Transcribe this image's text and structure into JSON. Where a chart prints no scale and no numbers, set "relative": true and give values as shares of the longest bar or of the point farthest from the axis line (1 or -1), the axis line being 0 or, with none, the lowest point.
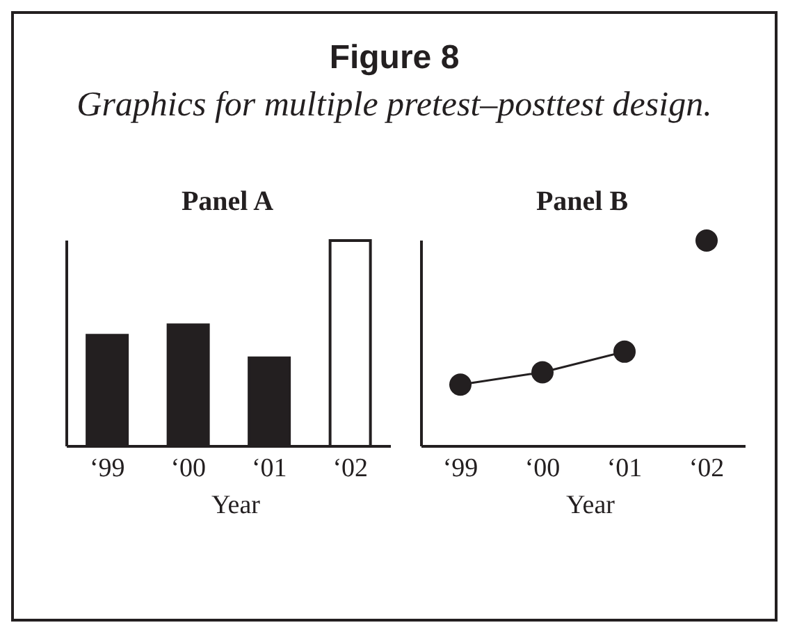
{
  "chart_data": [
    {
      "type": "bar",
      "title": "Panel A",
      "xlabel": "Year",
      "annotations": [
        "Figure 8",
        "Graphics for multiple pretest–posttest design."
      ],
      "categories": [
        "‘99",
        "‘00",
        "‘01",
        "‘02"
      ],
      "values": [
        0.54,
        0.59,
        0.43,
        1
      ],
      "colors": [
        "#231f20",
        "#231f20",
        "#231f20",
        "#ffffff"
      ],
      "relative": true
    },
    {
      "type": "line",
      "title": "Panel B",
      "xlabel": "Year",
      "categories": [
        "‘99",
        "‘00",
        "‘01",
        "‘02"
      ],
      "relative": true,
      "marker": "circle",
      "series": [
        {
          "type": "line",
          "color": "#231f20",
          "values": [
            0.3,
            0.36,
            0.46,
            null
          ]
        },
        {
          "type": "scatter",
          "color": "#231f20",
          "values": [
            null,
            null,
            null,
            1
          ]
        }
      ]
    }
  ]
}
